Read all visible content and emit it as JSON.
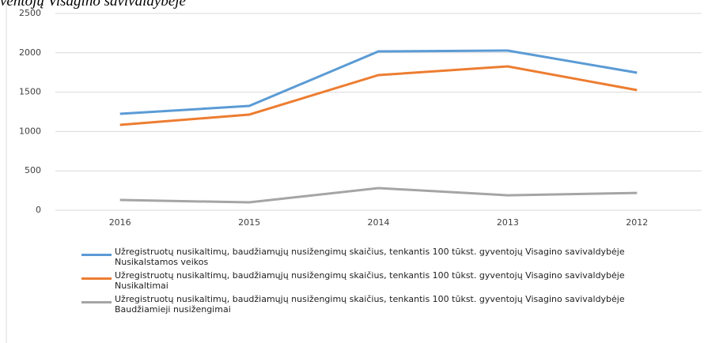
{
  "chart_data": {
    "type": "line",
    "title": "ventojų Visagino savivaldybėje",
    "categories": [
      "2016",
      "2015",
      "2014",
      "2013",
      "2012"
    ],
    "series": [
      {
        "name": "Užregistruotų nusikaltimų, baudžiamųjų nusižengimų skaičius, tenkantis 100 tūkst. gyventojų Visagino savivaldybėje Nusikalstamos veikos",
        "color": "#5b9bd5",
        "values": [
          1225,
          1325,
          2018,
          2028,
          1747
        ]
      },
      {
        "name": "Užregistruotų nusikaltimų, baudžiamųjų nusižengimų skaičius, tenkantis 100 tūkst. gyventojų Visagino savivaldybėje Nusikaltimai",
        "color": "#ed7d31",
        "values": [
          1084,
          1215,
          1717,
          1827,
          1526
        ]
      },
      {
        "name": "Užregistruotų nusikaltimų, baudžiamųjų nusižengimų skaičius, tenkantis 100 tūkst. gyventojų Visagino savivaldybėje Baudžiamieji nusižengimai",
        "color": "#a5a5a5",
        "values": [
          130,
          100,
          281,
          190,
          220
        ]
      }
    ],
    "ylim": [
      0,
      2500
    ],
    "yticks": [
      0,
      500,
      1000,
      1500,
      2000,
      2500
    ],
    "grid": true
  }
}
